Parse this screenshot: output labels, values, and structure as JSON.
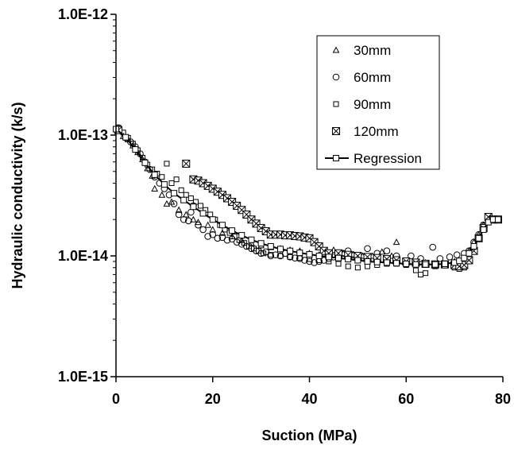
{
  "chart_data": {
    "type": "scatter",
    "xlabel": "Suction (MPa)",
    "ylabel": "Hydraulic conductivity (k/s)",
    "xlim": [
      0,
      80
    ],
    "ylim": [
      1e-15,
      1e-12
    ],
    "yscale": "log",
    "grid": false,
    "legend_position": "top-right",
    "x_ticks": [
      {
        "value": 0,
        "label": "0"
      },
      {
        "value": 20,
        "label": "20"
      },
      {
        "value": 40,
        "label": "40"
      },
      {
        "value": 60,
        "label": "60"
      },
      {
        "value": 80,
        "label": "80"
      }
    ],
    "y_ticks": [
      {
        "value": 1e-12,
        "label": "1.0E-12"
      },
      {
        "value": 1e-13,
        "label": "1.0E-13"
      },
      {
        "value": 1e-14,
        "label": "1.0E-14"
      },
      {
        "value": 1e-15,
        "label": "1.0E-15"
      }
    ],
    "series": [
      {
        "name": "30mm",
        "marker": "triangle",
        "points": [
          [
            0.5,
            1.1e-13
          ],
          [
            1.5,
            9.8e-14
          ],
          [
            2.5,
            9.2e-14
          ],
          [
            3.5,
            8.2e-14
          ],
          [
            4.5,
            7.2e-14
          ],
          [
            5.5,
            6.3e-14
          ],
          [
            6.5,
            5.3e-14
          ],
          [
            7.5,
            4.6e-14
          ],
          [
            8,
            3.6e-14
          ],
          [
            9.5,
            3.2e-14
          ],
          [
            10.5,
            2.7e-14
          ],
          [
            11.5,
            2.8e-14
          ],
          [
            13,
            2.4e-14
          ],
          [
            14.5,
            2.2e-14
          ],
          [
            16,
            2e-14
          ],
          [
            17,
            1.9e-14
          ],
          [
            19,
            1.8e-14
          ],
          [
            20,
            1.65e-14
          ],
          [
            22,
            1.55e-14
          ],
          [
            24,
            1.45e-14
          ],
          [
            26,
            1.35e-14
          ],
          [
            28,
            1.28e-14
          ],
          [
            30,
            1.22e-14
          ],
          [
            32,
            1.18e-14
          ],
          [
            34,
            1.15e-14
          ],
          [
            36,
            1.12e-14
          ],
          [
            38,
            1.1e-14
          ],
          [
            40,
            1.05e-14
          ],
          [
            42,
            1.02e-14
          ],
          [
            44,
            1e-14
          ],
          [
            45,
            1.12e-14
          ],
          [
            47,
            1.05e-14
          ],
          [
            49,
            1.03e-14
          ],
          [
            51,
            1e-14
          ],
          [
            53,
            1e-14
          ],
          [
            55,
            1.08e-14
          ],
          [
            57,
            1e-14
          ],
          [
            58,
            1.3e-14
          ],
          [
            60,
            9e-15
          ],
          [
            62,
            8.8e-15
          ],
          [
            64,
            8.8e-15
          ],
          [
            66,
            8.5e-15
          ],
          [
            68,
            8.5e-15
          ],
          [
            70,
            9e-15
          ],
          [
            72,
            9.5e-15
          ],
          [
            73,
            1.1e-14
          ],
          [
            74,
            1.3e-14
          ],
          [
            75,
            1.5e-14
          ],
          [
            76,
            1.8e-14
          ],
          [
            77,
            2.1e-14
          ],
          [
            78,
            2e-14
          ],
          [
            79,
            2e-14
          ]
        ]
      },
      {
        "name": "60mm",
        "marker": "circle",
        "points": [
          [
            0.5,
            1.15e-13
          ],
          [
            2,
            9.5e-14
          ],
          [
            3,
            8.8e-14
          ],
          [
            4,
            8e-14
          ],
          [
            5,
            7e-14
          ],
          [
            6,
            6e-14
          ],
          [
            7,
            5.2e-14
          ],
          [
            8,
            4.5e-14
          ],
          [
            9,
            4e-14
          ],
          [
            10,
            3.6e-14
          ],
          [
            11,
            3.2e-14
          ],
          [
            12,
            2.7e-14
          ],
          [
            13,
            2.2e-14
          ],
          [
            14,
            2e-14
          ],
          [
            15,
            1.95e-14
          ],
          [
            15.5,
            2.3e-14
          ],
          [
            16,
            2.6e-14
          ],
          [
            17,
            1.8e-14
          ],
          [
            18,
            1.65e-14
          ],
          [
            19,
            1.45e-14
          ],
          [
            20,
            1.5e-14
          ],
          [
            21,
            1.4e-14
          ],
          [
            22,
            1.42e-14
          ],
          [
            23,
            1.35e-14
          ],
          [
            24,
            1.38e-14
          ],
          [
            25,
            1.3e-14
          ],
          [
            26,
            1.25e-14
          ],
          [
            27,
            1.2e-14
          ],
          [
            28,
            1.15e-14
          ],
          [
            29,
            1.1e-14
          ],
          [
            30,
            1.05e-14
          ],
          [
            31,
            1.08e-14
          ],
          [
            32,
            1e-14
          ],
          [
            33,
            1.02e-14
          ],
          [
            34,
            1e-14
          ],
          [
            35,
            1.05e-14
          ],
          [
            36,
            9.8e-15
          ],
          [
            37,
            9.6e-15
          ],
          [
            38,
            9.5e-15
          ],
          [
            39,
            9.2e-15
          ],
          [
            40,
            9e-15
          ],
          [
            41,
            8.8e-15
          ],
          [
            42,
            9e-15
          ],
          [
            43,
            9.2e-15
          ],
          [
            44,
            9.5e-15
          ],
          [
            45,
            9.8e-15
          ],
          [
            46,
            1e-14
          ],
          [
            47,
            1.05e-14
          ],
          [
            48,
            1.1e-14
          ],
          [
            49,
            1.02e-14
          ],
          [
            50,
            1e-14
          ],
          [
            52,
            1.15e-14
          ],
          [
            54,
            1.05e-14
          ],
          [
            56,
            1.1e-14
          ],
          [
            58,
            1e-14
          ],
          [
            61,
            1e-14
          ],
          [
            63,
            9.5e-15
          ],
          [
            65.5,
            1.18e-14
          ],
          [
            67,
            9.5e-15
          ],
          [
            69,
            9.8e-15
          ],
          [
            70.5,
            1.02e-14
          ],
          [
            72,
            1.05e-14
          ],
          [
            73,
            1.1e-14
          ],
          [
            74,
            1.3e-14
          ],
          [
            75,
            1.5e-14
          ],
          [
            76,
            1.8e-14
          ],
          [
            77,
            2e-14
          ],
          [
            78,
            2e-14
          ],
          [
            79,
            2e-14
          ]
        ]
      },
      {
        "name": "90mm",
        "marker": "square-small",
        "points": [
          [
            0.5,
            1.15e-13
          ],
          [
            1.5,
            1.05e-13
          ],
          [
            2.5,
            9.5e-14
          ],
          [
            3.5,
            8.5e-14
          ],
          [
            4.5,
            7.5e-14
          ],
          [
            5.5,
            6.5e-14
          ],
          [
            6.5,
            5.7e-14
          ],
          [
            7.5,
            5.2e-14
          ],
          [
            8.5,
            4.8e-14
          ],
          [
            9.5,
            4.5e-14
          ],
          [
            10.5,
            5.8e-14
          ],
          [
            11.5,
            4e-14
          ],
          [
            12.5,
            4.3e-14
          ],
          [
            13.5,
            3.5e-14
          ],
          [
            14.5,
            3.2e-14
          ],
          [
            15.5,
            3e-14
          ],
          [
            16.5,
            2.8e-14
          ],
          [
            17.5,
            2.6e-14
          ],
          [
            18.5,
            2.4e-14
          ],
          [
            19.5,
            2.2e-14
          ],
          [
            20.5,
            2e-14
          ],
          [
            21.5,
            1.8e-14
          ],
          [
            22.5,
            1.65e-14
          ],
          [
            23.5,
            1.55e-14
          ],
          [
            24.5,
            1.45e-14
          ],
          [
            25.5,
            1.35e-14
          ],
          [
            26.5,
            1.28e-14
          ],
          [
            27.5,
            1.2e-14
          ],
          [
            28.5,
            1.15e-14
          ],
          [
            29.5,
            1.1e-14
          ],
          [
            30.5,
            1.05e-14
          ],
          [
            32,
            1.02e-14
          ],
          [
            34,
            1e-14
          ],
          [
            36,
            9.8e-15
          ],
          [
            38,
            9.6e-15
          ],
          [
            40,
            9.4e-15
          ],
          [
            42,
            9.2e-15
          ],
          [
            44,
            9e-15
          ],
          [
            46,
            8.6e-15
          ],
          [
            48,
            8.2e-15
          ],
          [
            50,
            8e-15
          ],
          [
            52,
            8.2e-15
          ],
          [
            54,
            8.4e-15
          ],
          [
            56,
            8.6e-15
          ],
          [
            58,
            8.6e-15
          ],
          [
            60,
            8.4e-15
          ],
          [
            62,
            7.6e-15
          ],
          [
            63,
            7e-15
          ],
          [
            64,
            7.2e-15
          ],
          [
            66,
            8.2e-15
          ],
          [
            68,
            8.4e-15
          ],
          [
            70,
            8e-15
          ],
          [
            71,
            7.8e-15
          ],
          [
            72,
            8e-15
          ],
          [
            73,
            9e-15
          ],
          [
            74,
            1.1e-14
          ],
          [
            75,
            1.4e-14
          ],
          [
            76,
            1.8e-14
          ],
          [
            77,
            2.1e-14
          ],
          [
            78,
            2e-14
          ],
          [
            79,
            2e-14
          ]
        ]
      },
      {
        "name": "120mm",
        "marker": "square-x",
        "points": [
          [
            0.5,
            1.1e-13
          ],
          [
            14.5,
            5.8e-14
          ],
          [
            16,
            4.3e-14
          ],
          [
            17,
            4.2e-14
          ],
          [
            18,
            4e-14
          ],
          [
            19,
            3.8e-14
          ],
          [
            20,
            3.6e-14
          ],
          [
            21,
            3.4e-14
          ],
          [
            22,
            3.2e-14
          ],
          [
            23,
            3e-14
          ],
          [
            24,
            2.8e-14
          ],
          [
            25,
            2.6e-14
          ],
          [
            26,
            2.4e-14
          ],
          [
            27,
            2.2e-14
          ],
          [
            28,
            2e-14
          ],
          [
            29,
            1.85e-14
          ],
          [
            30,
            1.7e-14
          ],
          [
            31,
            1.6e-14
          ],
          [
            32,
            1.5e-14
          ],
          [
            33,
            1.5e-14
          ],
          [
            34,
            1.5e-14
          ],
          [
            35,
            1.48e-14
          ],
          [
            36,
            1.48e-14
          ],
          [
            37,
            1.46e-14
          ],
          [
            38,
            1.45e-14
          ],
          [
            39,
            1.42e-14
          ],
          [
            40,
            1.4e-14
          ],
          [
            41,
            1.3e-14
          ],
          [
            42,
            1.2e-14
          ],
          [
            43,
            1.1e-14
          ],
          [
            44,
            1.05e-14
          ],
          [
            46,
            1.05e-14
          ],
          [
            48,
            1.02e-14
          ],
          [
            50,
            1e-14
          ],
          [
            52,
            9.8e-15
          ],
          [
            54,
            9.6e-15
          ],
          [
            56,
            9.4e-15
          ],
          [
            58,
            9.2e-15
          ],
          [
            60,
            9e-15
          ],
          [
            62,
            8.8e-15
          ],
          [
            64,
            8.6e-15
          ],
          [
            66,
            8.5e-15
          ],
          [
            68,
            8.5e-15
          ],
          [
            70,
            8.4e-15
          ],
          [
            71,
            8.2e-15
          ],
          [
            72,
            8.4e-15
          ],
          [
            73,
            9.2e-15
          ],
          [
            74,
            1.1e-14
          ],
          [
            75,
            1.4e-14
          ],
          [
            76,
            1.7e-14
          ],
          [
            77,
            2.1e-14
          ],
          [
            78,
            2e-14
          ],
          [
            79,
            2e-14
          ]
        ]
      },
      {
        "name": "Regression",
        "marker": "line-square",
        "points": [
          [
            0,
            1.12e-13
          ],
          [
            2,
            9.6e-14
          ],
          [
            4,
            7.6e-14
          ],
          [
            6,
            5.9e-14
          ],
          [
            8,
            4.7e-14
          ],
          [
            10,
            3.9e-14
          ],
          [
            12,
            3.3e-14
          ],
          [
            14,
            2.9e-14
          ],
          [
            16,
            2.55e-14
          ],
          [
            18,
            2.25e-14
          ],
          [
            20,
            2e-14
          ],
          [
            22,
            1.8e-14
          ],
          [
            24,
            1.62e-14
          ],
          [
            26,
            1.48e-14
          ],
          [
            28,
            1.36e-14
          ],
          [
            30,
            1.27e-14
          ],
          [
            32,
            1.2e-14
          ],
          [
            34,
            1.14e-14
          ],
          [
            36,
            1.1e-14
          ],
          [
            38,
            1.06e-14
          ],
          [
            40,
            1.03e-14
          ],
          [
            42,
            1e-14
          ],
          [
            44,
            9.8e-15
          ],
          [
            46,
            9.6e-15
          ],
          [
            48,
            9.4e-15
          ],
          [
            50,
            9.2e-15
          ],
          [
            52,
            9e-15
          ],
          [
            54,
            8.9e-15
          ],
          [
            56,
            8.8e-15
          ],
          [
            58,
            8.7e-15
          ],
          [
            60,
            8.6e-15
          ],
          [
            62,
            8.5e-15
          ],
          [
            64,
            8.5e-15
          ],
          [
            66,
            8.5e-15
          ],
          [
            68,
            8.6e-15
          ],
          [
            70,
            8.8e-15
          ],
          [
            71,
            9.1e-15
          ],
          [
            72,
            9.6e-15
          ],
          [
            73,
            1.05e-14
          ],
          [
            74,
            1.2e-14
          ],
          [
            75,
            1.4e-14
          ],
          [
            76,
            1.65e-14
          ],
          [
            77,
            1.9e-14
          ],
          [
            78,
            2e-14
          ],
          [
            79,
            2e-14
          ]
        ]
      }
    ]
  }
}
